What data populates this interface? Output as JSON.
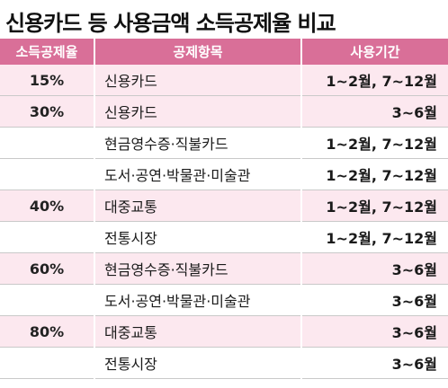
{
  "title": "신용카드 등 사용금액 소득공제율 비교",
  "headers": [
    "소득공제율",
    "공제항목",
    "사용기간"
  ],
  "rows": [
    {
      "rate": "15%",
      "item": "신용카드",
      "period": "1~2월, 7~12월"
    },
    {
      "rate": "30%",
      "item": "신용카드",
      "period": "3~6월"
    },
    {
      "rate": "",
      "item": "현금영수증·직불카드",
      "period": "1~2월, 7~12월"
    },
    {
      "rate": "",
      "item": "도서·공연·박물관·미술관",
      "period": "1~2월, 7~12월"
    },
    {
      "rate": "40%",
      "item": "대중교통",
      "period": "1~2월, 7~12월"
    },
    {
      "rate": "",
      "item": "전통시장",
      "period": "1~2월, 7~12월"
    },
    {
      "rate": "60%",
      "item": "현금영수증·직불카드",
      "period": "3~6월"
    },
    {
      "rate": "",
      "item": "도서·공연·박물관·미술관",
      "period": "3~6월"
    },
    {
      "rate": "80%",
      "item": "대중교통",
      "period": "3~6월"
    },
    {
      "rate": "",
      "item": "전통시장",
      "period": "3~6월"
    }
  ],
  "colors": {
    "header_bg": "#d96f98",
    "row_pink": "#fce8ef",
    "row_white": "#ffffff"
  }
}
